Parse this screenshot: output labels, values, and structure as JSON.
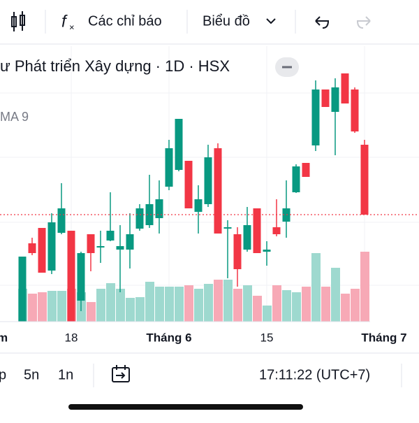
{
  "toolbar": {
    "indicators": "Các chỉ báo",
    "chart_type": "Biểu đồ"
  },
  "legend": {
    "title": "ư Phát triển Xây dựng · 1D · HSX",
    "indicator": "MA 9"
  },
  "x_axis": [
    "m",
    "18",
    "Tháng 6",
    "15",
    "Tháng 7"
  ],
  "bottom_bar": {
    "ranges": [
      "p",
      "5n",
      "1n"
    ],
    "time": "17:11:22 (UTC+7)"
  },
  "chart_data": {
    "type": "candlestick",
    "up_color": "#089981",
    "down_color": "#f23645",
    "up_volume_color": "#9ed9cf",
    "down_volume_color": "#f7a9b6",
    "ylim": [
      4,
      44
    ],
    "volume_lim": [
      0,
      12
    ],
    "open": [
      4.0,
      15.2,
      17.4,
      11.3,
      16.7,
      17.0,
      7.0,
      16.5,
      14.7,
      15.6,
      14.3,
      14.3,
      17.3,
      17.8,
      18.8,
      23.3,
      25.7,
      27.0,
      19.7,
      20.8,
      28.8,
      17.3,
      16.5,
      14.3,
      20.2,
      14.0,
      17.5,
      18.3,
      22.5,
      26.7,
      29.2,
      37.2,
      34.0,
      39.5,
      37.2,
      29.3
    ],
    "close": [
      13.3,
      13.8,
      11.0,
      18.2,
      20.2,
      4.0,
      13.8,
      13.8,
      14.8,
      17.0,
      14.8,
      16.5,
      20.2,
      20.8,
      21.5,
      28.8,
      33.0,
      20.2,
      21.5,
      27.5,
      16.6,
      17.5,
      11.5,
      17.8,
      13.8,
      14.3,
      16.5,
      20.2,
      26.2,
      24.7,
      37.2,
      34.7,
      37.5,
      35.2,
      31.2,
      19.3
    ],
    "high": [
      13.3,
      16.0,
      17.4,
      19.5,
      23.8,
      17.0,
      14.0,
      16.5,
      17.0,
      22.5,
      17.8,
      19.5,
      20.8,
      25.0,
      24.2,
      30.0,
      33.0,
      27.0,
      23.5,
      29.3,
      29.5,
      18.5,
      17.5,
      20.4,
      20.2,
      15.5,
      21.5,
      24.2,
      26.5,
      26.7,
      38.5,
      37.2,
      38.8,
      39.5,
      37.5,
      30.0
    ],
    "low": [
      4.0,
      13.5,
      11.0,
      10.8,
      16.5,
      4.0,
      5.5,
      11.2,
      12.4,
      15.5,
      8.2,
      11.6,
      17.0,
      17.4,
      16.6,
      22.8,
      25.5,
      20.2,
      16.6,
      20.4,
      16.6,
      10.2,
      9.0,
      14.0,
      13.8,
      12.0,
      16.2,
      16.0,
      22.4,
      24.7,
      28.4,
      34.7,
      27.8,
      35.2,
      31.0,
      19.3
    ],
    "volume": [
      4.7,
      4.0,
      4.2,
      4.4,
      4.4,
      4.7,
      4.2,
      2.8,
      4.7,
      5.5,
      4.7,
      3.4,
      3.5,
      5.7,
      5.0,
      5.0,
      5.0,
      5.2,
      4.7,
      5.4,
      6.0,
      6.0,
      4.7,
      5.2,
      3.7,
      2.3,
      5.2,
      4.5,
      4.2,
      5.0,
      9.8,
      5.0,
      7.7,
      4.0,
      4.7,
      10.0
    ]
  }
}
